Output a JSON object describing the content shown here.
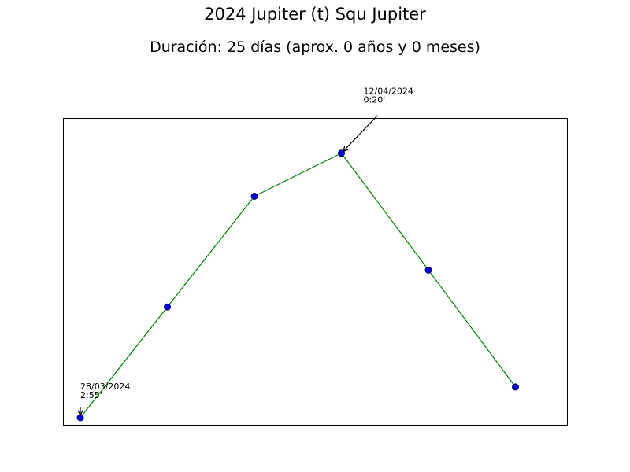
{
  "chart_data": {
    "type": "line",
    "title": "2024 Jupiter (t) Squ Jupiter",
    "subtitle": "Duración: 25 días (aprox. 0 años y 0 meses)",
    "xlabel": "",
    "ylabel": "",
    "axes_visible": false,
    "grid": false,
    "line_color": "#008000",
    "marker_fill": "#0000cc",
    "marker_edge": "#000080",
    "x": [
      0,
      1,
      2,
      3,
      4,
      5
    ],
    "y": [
      0.0,
      0.36,
      0.72,
      0.86,
      0.48,
      0.1
    ],
    "annotations": [
      {
        "point_index": 0,
        "lines": [
          "28/03/2024",
          "2:55'"
        ]
      },
      {
        "point_index": 3,
        "lines": [
          "12/04/2024",
          "0:20'"
        ]
      }
    ]
  }
}
